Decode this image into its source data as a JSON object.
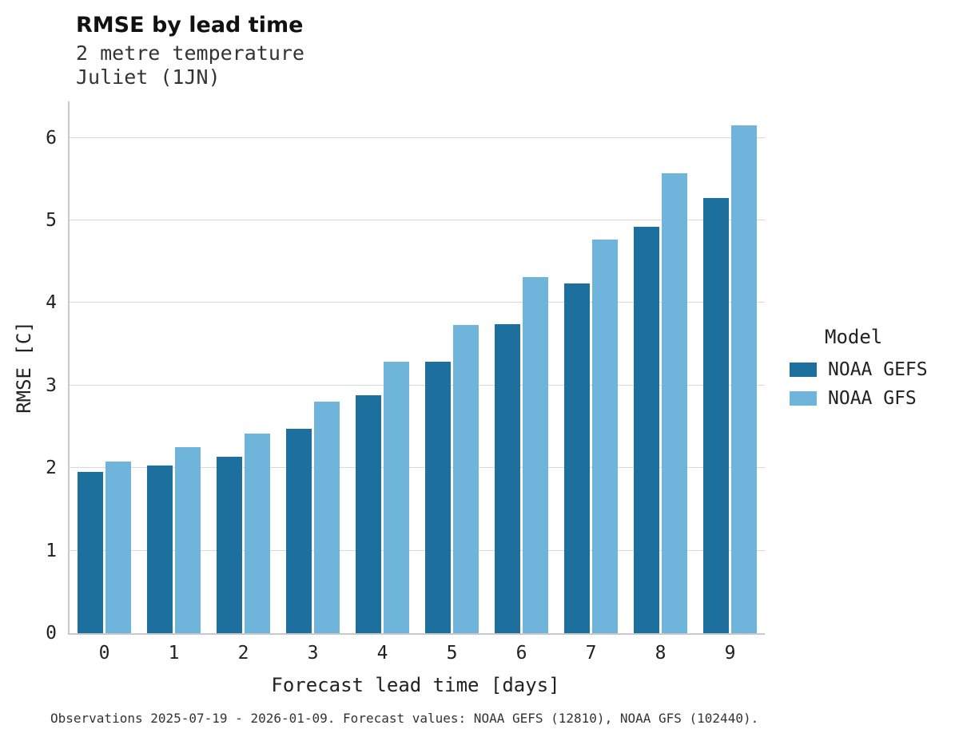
{
  "chart_data": {
    "type": "bar",
    "title": "RMSE by lead time",
    "subtitle_line1": "2 metre temperature",
    "subtitle_line2": "Juliet (1JN)",
    "categories": [
      "0",
      "1",
      "2",
      "3",
      "4",
      "5",
      "6",
      "7",
      "8",
      "9"
    ],
    "series": [
      {
        "name": "NOAA GEFS",
        "color": "#1d6f9e",
        "values": [
          1.95,
          2.03,
          2.14,
          2.48,
          2.88,
          3.29,
          3.74,
          4.24,
          4.92,
          5.27
        ]
      },
      {
        "name": "NOAA GFS",
        "color": "#6fb4da",
        "values": [
          2.08,
          2.25,
          2.42,
          2.8,
          3.29,
          3.73,
          4.31,
          4.77,
          5.57,
          6.15
        ]
      }
    ],
    "xlabel": "Forecast lead time [days]",
    "ylabel": "RMSE [C]",
    "ylim": [
      0,
      6.44
    ],
    "yticks": [
      0,
      1,
      2,
      3,
      4,
      5,
      6
    ],
    "grid": "horizontal",
    "legend_title": "Model",
    "legend_position": "right",
    "caption": "Observations 2025-07-19 - 2026-01-09. Forecast values: NOAA GEFS (12810), NOAA GFS (102440)."
  }
}
